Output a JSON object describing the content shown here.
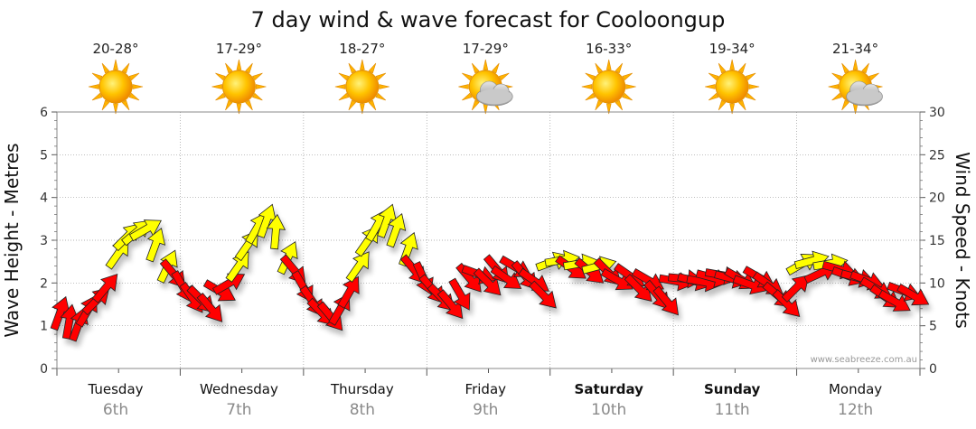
{
  "chart_data": {
    "type": "line",
    "title": "7 day wind & wave forecast for Cooloongup",
    "ylabel_left": "Wave Height - Metres",
    "ylabel_right": "Wind Speed - Knots",
    "ylim_left": [
      0,
      6
    ],
    "ylim_right": [
      0,
      30
    ],
    "yticks_left": [
      "0",
      "1",
      "2",
      "3",
      "4",
      "5",
      "6"
    ],
    "yticks_right": [
      "0",
      "5",
      "10",
      "15",
      "20",
      "25",
      "30"
    ],
    "grid": true,
    "watermark": "www.seabreeze.com.au",
    "days": [
      {
        "day": "Tuesday",
        "date": "6th",
        "temp": "20-28°",
        "weather": "sunny",
        "bold": false
      },
      {
        "day": "Wednesday",
        "date": "7th",
        "temp": "17-29°",
        "weather": "sunny",
        "bold": false
      },
      {
        "day": "Thursday",
        "date": "8th",
        "temp": "18-27°",
        "weather": "sunny",
        "bold": false
      },
      {
        "day": "Friday",
        "date": "9th",
        "temp": "17-29°",
        "weather": "partly-cloudy",
        "bold": false
      },
      {
        "day": "Saturday",
        "date": "10th",
        "temp": "16-33°",
        "weather": "sunny",
        "bold": true
      },
      {
        "day": "Sunday",
        "date": "11th",
        "temp": "19-34°",
        "weather": "sunny",
        "bold": true
      },
      {
        "day": "Monday",
        "date": "12th",
        "temp": "21-34°",
        "weather": "partly-cloudy",
        "bold": false
      }
    ],
    "wind_arrows": {
      "colors": {
        "light": "#ffff00",
        "strong": "#ff0000",
        "outline": "#222222"
      },
      "points": [
        {
          "t": 0.05,
          "knots": 6.5,
          "dir": 200,
          "strong": true
        },
        {
          "t": 0.2,
          "knots": 5.5,
          "dir": 190,
          "strong": true
        },
        {
          "t": 0.35,
          "knots": 5.2,
          "dir": 200,
          "strong": true
        },
        {
          "t": 0.5,
          "knots": 6.8,
          "dir": 210,
          "strong": true
        },
        {
          "t": 0.65,
          "knots": 8,
          "dir": 225,
          "strong": true
        },
        {
          "t": 0.8,
          "knots": 9.5,
          "dir": 220,
          "strong": true
        },
        {
          "t": 1.0,
          "knots": 13.5,
          "dir": 215,
          "strong": false
        },
        {
          "t": 1.15,
          "knots": 15.5,
          "dir": 225,
          "strong": false
        },
        {
          "t": 1.3,
          "knots": 16,
          "dir": 230,
          "strong": false
        },
        {
          "t": 1.45,
          "knots": 16.3,
          "dir": 240,
          "strong": false
        },
        {
          "t": 1.6,
          "knots": 14.5,
          "dir": 200,
          "strong": false
        },
        {
          "t": 1.8,
          "knots": 12,
          "dir": 205,
          "strong": false
        },
        {
          "t": 1.9,
          "knots": 11,
          "dir": 320,
          "strong": true
        },
        {
          "t": 2.05,
          "knots": 9.5,
          "dir": 330,
          "strong": true
        },
        {
          "t": 2.2,
          "knots": 8.2,
          "dir": 325,
          "strong": true
        },
        {
          "t": 2.35,
          "knots": 8,
          "dir": 315,
          "strong": true
        },
        {
          "t": 2.5,
          "knots": 7,
          "dir": 320,
          "strong": true
        },
        {
          "t": 2.65,
          "knots": 9,
          "dir": 300,
          "strong": true
        },
        {
          "t": 2.8,
          "knots": 10,
          "dir": 240,
          "strong": true
        },
        {
          "t": 2.95,
          "knots": 12,
          "dir": 215,
          "strong": false
        },
        {
          "t": 3.1,
          "knots": 14.5,
          "dir": 215,
          "strong": false
        },
        {
          "t": 3.25,
          "knots": 16.5,
          "dir": 210,
          "strong": false
        },
        {
          "t": 3.4,
          "knots": 17.3,
          "dir": 200,
          "strong": false
        },
        {
          "t": 3.55,
          "knots": 16,
          "dir": 185,
          "strong": false
        },
        {
          "t": 3.75,
          "knots": 13,
          "dir": 205,
          "strong": false
        },
        {
          "t": 3.85,
          "knots": 11.5,
          "dir": 320,
          "strong": true
        },
        {
          "t": 4.0,
          "knots": 9.5,
          "dir": 330,
          "strong": true
        },
        {
          "t": 4.15,
          "knots": 7.8,
          "dir": 325,
          "strong": true
        },
        {
          "t": 4.3,
          "knots": 6.5,
          "dir": 315,
          "strong": true
        },
        {
          "t": 4.45,
          "knots": 6,
          "dir": 320,
          "strong": true
        },
        {
          "t": 4.6,
          "knots": 7,
          "dir": 210,
          "strong": true
        },
        {
          "t": 4.75,
          "knots": 9,
          "dir": 210,
          "strong": true
        },
        {
          "t": 4.9,
          "knots": 12,
          "dir": 215,
          "strong": false
        },
        {
          "t": 5.05,
          "knots": 15,
          "dir": 215,
          "strong": false
        },
        {
          "t": 5.2,
          "knots": 16.8,
          "dir": 210,
          "strong": false
        },
        {
          "t": 5.35,
          "knots": 17.3,
          "dir": 200,
          "strong": false
        },
        {
          "t": 5.5,
          "knots": 16.2,
          "dir": 200,
          "strong": false
        },
        {
          "t": 5.7,
          "knots": 14,
          "dir": 200,
          "strong": false
        },
        {
          "t": 5.8,
          "knots": 11.5,
          "dir": 320,
          "strong": true
        },
        {
          "t": 5.95,
          "knots": 10.5,
          "dir": 335,
          "strong": true
        },
        {
          "t": 6.1,
          "knots": 9.2,
          "dir": 320,
          "strong": true
        },
        {
          "t": 6.25,
          "knots": 8.2,
          "dir": 315,
          "strong": true
        },
        {
          "t": 6.4,
          "knots": 7.4,
          "dir": 320,
          "strong": true
        },
        {
          "t": 6.55,
          "knots": 8.6,
          "dir": 330,
          "strong": true
        },
        {
          "t": 6.7,
          "knots": 10.5,
          "dir": 320,
          "strong": true
        },
        {
          "t": 6.85,
          "knots": 11,
          "dir": 290,
          "strong": true
        },
        {
          "t": 7.0,
          "knots": 10,
          "dir": 315,
          "strong": true
        },
        {
          "t": 7.15,
          "knots": 11.5,
          "dir": 320,
          "strong": true
        },
        {
          "t": 7.3,
          "knots": 10.5,
          "dir": 305,
          "strong": true
        },
        {
          "t": 7.45,
          "knots": 11.8,
          "dir": 300,
          "strong": true
        },
        {
          "t": 7.6,
          "knots": 10.8,
          "dir": 320,
          "strong": true
        },
        {
          "t": 7.75,
          "knots": 10.2,
          "dir": 305,
          "strong": true
        },
        {
          "t": 7.9,
          "knots": 8.5,
          "dir": 315,
          "strong": true
        },
        {
          "t": 8.05,
          "knots": 12.5,
          "dir": 250,
          "strong": false
        },
        {
          "t": 8.2,
          "knots": 12.7,
          "dir": 260,
          "strong": false
        },
        {
          "t": 8.35,
          "knots": 11.7,
          "dir": 305,
          "strong": true
        },
        {
          "t": 8.5,
          "knots": 12.3,
          "dir": 260,
          "strong": false
        },
        {
          "t": 8.65,
          "knots": 11.3,
          "dir": 310,
          "strong": true
        },
        {
          "t": 8.8,
          "knots": 12,
          "dir": 255,
          "strong": false
        },
        {
          "t": 8.95,
          "knots": 11.2,
          "dir": 315,
          "strong": true
        },
        {
          "t": 9.1,
          "knots": 10.3,
          "dir": 300,
          "strong": true
        },
        {
          "t": 9.3,
          "knots": 10.8,
          "dir": 305,
          "strong": true
        },
        {
          "t": 9.45,
          "knots": 9.3,
          "dir": 315,
          "strong": true
        },
        {
          "t": 9.6,
          "knots": 10.3,
          "dir": 300,
          "strong": true
        },
        {
          "t": 9.75,
          "knots": 8.5,
          "dir": 320,
          "strong": true
        },
        {
          "t": 9.9,
          "knots": 7.8,
          "dir": 320,
          "strong": true
        },
        {
          "t": 10.05,
          "knots": 10.2,
          "dir": 280,
          "strong": true
        },
        {
          "t": 10.2,
          "knots": 10.5,
          "dir": 275,
          "strong": true
        },
        {
          "t": 10.35,
          "knots": 10.2,
          "dir": 285,
          "strong": true
        },
        {
          "t": 10.5,
          "knots": 10.1,
          "dir": 280,
          "strong": true
        },
        {
          "t": 10.65,
          "knots": 10.6,
          "dir": 285,
          "strong": true
        },
        {
          "t": 10.8,
          "knots": 10.9,
          "dir": 280,
          "strong": true
        },
        {
          "t": 10.95,
          "knots": 10.5,
          "dir": 285,
          "strong": true
        },
        {
          "t": 11.1,
          "knots": 10.4,
          "dir": 300,
          "strong": true
        },
        {
          "t": 11.25,
          "knots": 9.8,
          "dir": 290,
          "strong": true
        },
        {
          "t": 11.4,
          "knots": 10.6,
          "dir": 300,
          "strong": true
        },
        {
          "t": 11.55,
          "knots": 9.8,
          "dir": 305,
          "strong": true
        },
        {
          "t": 11.7,
          "knots": 8.5,
          "dir": 310,
          "strong": true
        },
        {
          "t": 11.85,
          "knots": 7.5,
          "dir": 315,
          "strong": true
        },
        {
          "t": 12.0,
          "knots": 9.5,
          "dir": 225,
          "strong": true
        },
        {
          "t": 12.1,
          "knots": 12.3,
          "dir": 240,
          "strong": false
        },
        {
          "t": 12.25,
          "knots": 12.6,
          "dir": 255,
          "strong": false
        },
        {
          "t": 12.4,
          "knots": 11.2,
          "dir": 245,
          "strong": true
        },
        {
          "t": 12.55,
          "knots": 12.3,
          "dir": 260,
          "strong": false
        },
        {
          "t": 12.7,
          "knots": 11.6,
          "dir": 285,
          "strong": true
        },
        {
          "t": 12.85,
          "knots": 10.8,
          "dir": 290,
          "strong": true
        },
        {
          "t": 13.0,
          "knots": 10.6,
          "dir": 285,
          "strong": true
        },
        {
          "t": 13.15,
          "knots": 10.3,
          "dir": 290,
          "strong": true
        },
        {
          "t": 13.3,
          "knots": 9.3,
          "dir": 300,
          "strong": true
        },
        {
          "t": 13.45,
          "knots": 8.3,
          "dir": 305,
          "strong": true
        },
        {
          "t": 13.6,
          "knots": 7.8,
          "dir": 300,
          "strong": true
        },
        {
          "t": 13.75,
          "knots": 9,
          "dir": 290,
          "strong": true
        },
        {
          "t": 13.9,
          "knots": 8.5,
          "dir": 300,
          "strong": true
        }
      ]
    }
  }
}
